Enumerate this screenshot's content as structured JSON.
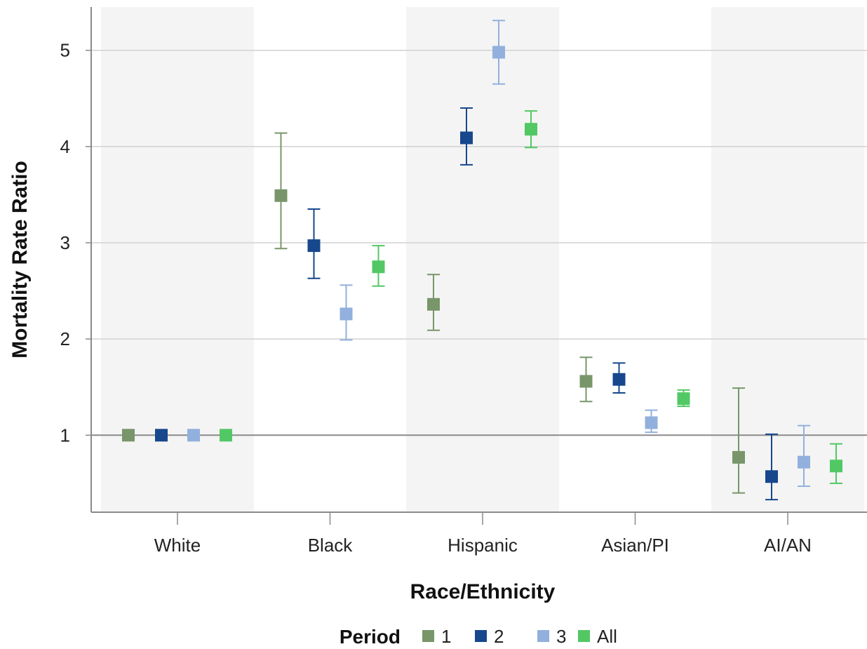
{
  "chart_data": {
    "type": "scatter",
    "xlabel": "Race/Ethnicity",
    "ylabel": "Mortality Rate Ratio",
    "categories": [
      "White",
      "Black",
      "Hispanic",
      "Asian/PI",
      "AI/AN"
    ],
    "ylim": [
      0.2,
      5.45
    ],
    "yticks": [
      1,
      2,
      3,
      4,
      5
    ],
    "reference_line": 1,
    "grid": true,
    "alternating_category_bands": true,
    "legend": {
      "title": "Period",
      "placement": "bottom",
      "entries": [
        "1",
        "2",
        "3",
        "All"
      ]
    },
    "series": [
      {
        "name": "1",
        "color": "#78966a",
        "values": [
          1.0,
          3.49,
          2.36,
          1.56,
          0.77
        ],
        "lower": [
          1.0,
          2.94,
          2.09,
          1.35,
          0.4
        ],
        "upper": [
          1.0,
          4.14,
          2.67,
          1.81,
          1.49
        ]
      },
      {
        "name": "2",
        "color": "#17478c",
        "values": [
          1.0,
          2.97,
          4.09,
          1.58,
          0.57
        ],
        "lower": [
          1.0,
          2.63,
          3.81,
          1.44,
          0.33
        ],
        "upper": [
          1.0,
          3.35,
          4.4,
          1.75,
          1.01
        ]
      },
      {
        "name": "3",
        "color": "#92b0dd",
        "values": [
          1.0,
          2.26,
          4.98,
          1.13,
          0.72
        ],
        "lower": [
          1.0,
          1.99,
          4.65,
          1.03,
          0.47
        ],
        "upper": [
          1.0,
          2.56,
          5.31,
          1.26,
          1.1
        ]
      },
      {
        "name": "All",
        "color": "#52c865",
        "values": [
          1.0,
          2.75,
          4.18,
          1.38,
          0.68
        ],
        "lower": [
          1.0,
          2.55,
          3.99,
          1.3,
          0.5
        ],
        "upper": [
          1.0,
          2.97,
          4.37,
          1.47,
          0.91
        ]
      }
    ]
  }
}
